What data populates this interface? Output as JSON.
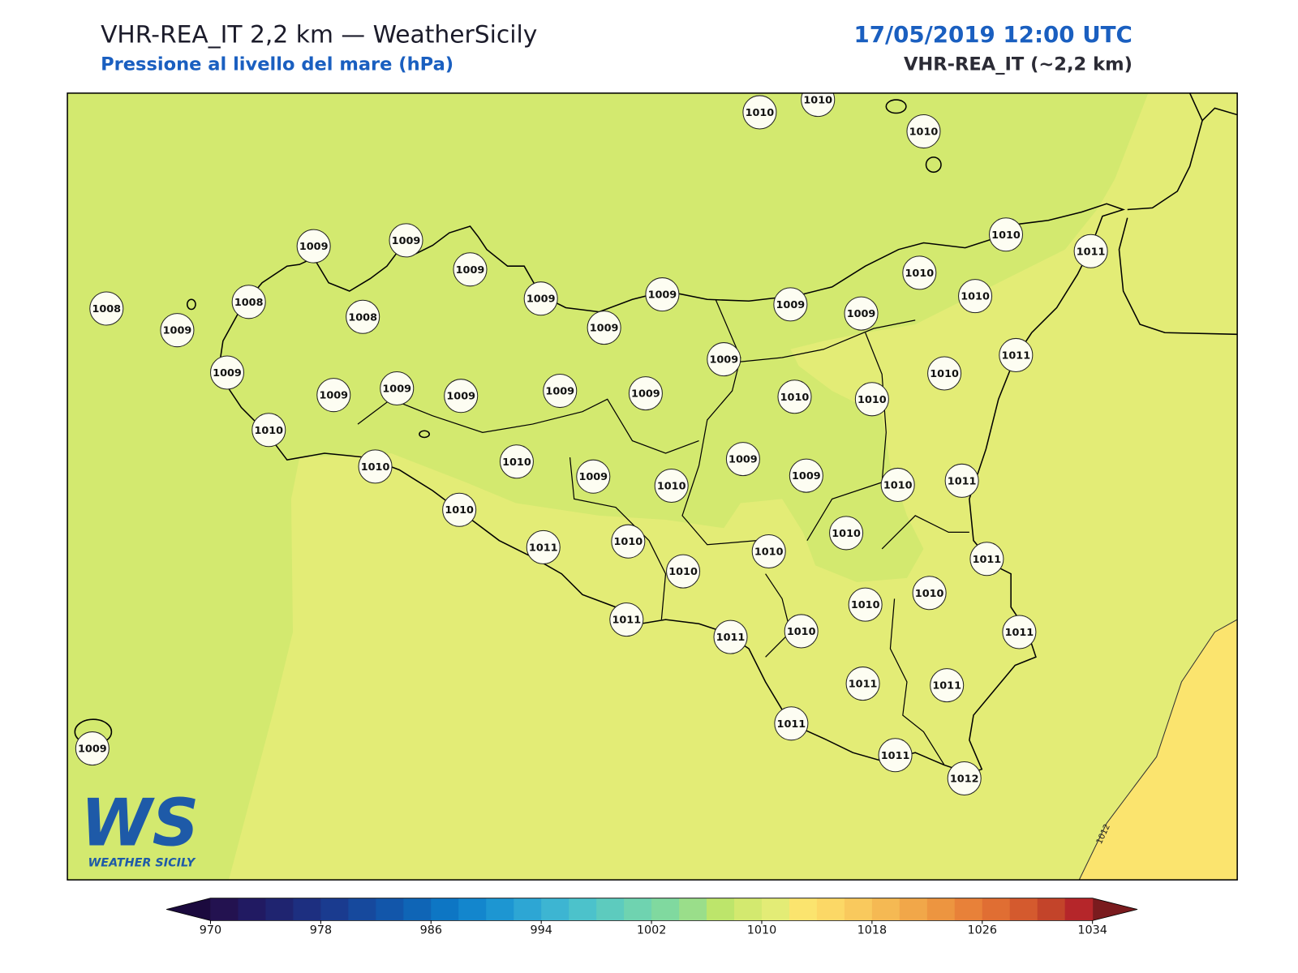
{
  "header": {
    "title": "VHR-REA_IT 2,2 km — WeatherSicily",
    "subtitle": "Pressione al livello del mare (hPa)",
    "datetime": "17/05/2019 12:00 UTC",
    "model": "VHR-REA_IT (~2,2 km)"
  },
  "map": {
    "stations": [
      1010,
      1010,
      1010,
      1009,
      1009,
      1009,
      1010,
      1011,
      1008,
      1008,
      1008,
      1009,
      1009,
      1010,
      1010,
      1009,
      1009,
      1009,
      1009,
      1009,
      1009,
      1011,
      1010,
      1009,
      1009,
      1009,
      1009,
      1009,
      1010,
      1010,
      1010,
      1010,
      1009,
      1010,
      1009,
      1010,
      1009,
      1010,
      1011,
      1010,
      1010,
      1011,
      1010,
      1010,
      1010,
      1011,
      1010,
      1010,
      1011,
      1011,
      1010,
      1011,
      1011,
      1011,
      1011,
      1011,
      1012,
      1009
    ],
    "contour_label": "1012"
  },
  "logo": {
    "mark": "WS",
    "text": "WEATHER SICILY"
  },
  "colorbar": {
    "range": [
      970,
      1034
    ],
    "ticks": [
      970,
      978,
      986,
      994,
      1002,
      1010,
      1018,
      1026,
      1034
    ],
    "under_color": "#1b0a3e",
    "over_color": "#7a1b1e",
    "colors": [
      "#231250",
      "#211a62",
      "#1f2470",
      "#1d2f80",
      "#1a3b8f",
      "#16499d",
      "#1256aa",
      "#0f65b6",
      "#0d76c4",
      "#1386cd",
      "#1d96d2",
      "#2da6d4",
      "#3db5d2",
      "#4cc2cb",
      "#5dcbbe",
      "#6fd3b0",
      "#80d99f",
      "#9ade8a",
      "#bde56b",
      "#d3e96f",
      "#e3ec76",
      "#fbe46e",
      "#fcd866",
      "#f9c95d",
      "#f5b953",
      "#f1a749",
      "#ed9540",
      "#e88139",
      "#e06e33",
      "#d45a2e",
      "#c3442a",
      "#b5262a"
    ]
  }
}
